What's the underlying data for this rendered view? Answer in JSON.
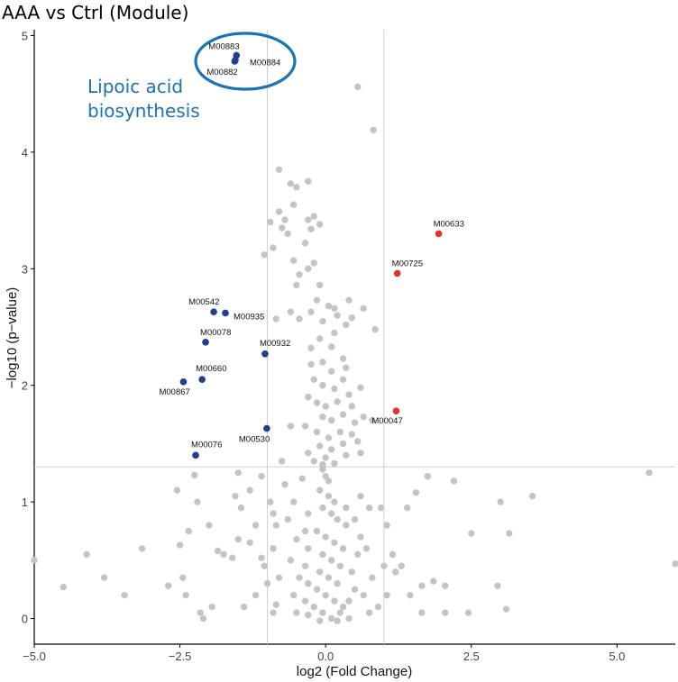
{
  "title": "AAA vs Ctrl (Module)",
  "colors": {
    "nonsignificant": "#c4c4c4",
    "down": "#1f3f8f",
    "up": "#e0342c",
    "annotation": "#1a72b8",
    "threshold": "#cfcfcf"
  },
  "chart_data": {
    "type": "scatter",
    "xlabel": "log2 (Fold Change)",
    "ylabel": "−log10 (p−value)",
    "xlim": [
      -5.0,
      6.0
    ],
    "ylim": [
      -0.22,
      5.05
    ],
    "xticks": [
      -5.0,
      -2.5,
      0.0,
      2.5,
      5.0
    ],
    "xtick_labels": [
      "−5.0",
      "−2.5",
      "0.0",
      "2.5",
      "5.0"
    ],
    "yticks": [
      0,
      1,
      2,
      3,
      4,
      5
    ],
    "ytick_labels": [
      "0",
      "1",
      "2",
      "3",
      "4",
      "5"
    ],
    "grid": false,
    "thresholds": {
      "x": [
        -1.0,
        1.0
      ],
      "y": [
        1.3
      ]
    },
    "annotation": {
      "lines": [
        "Lipoic acid",
        "biosynthesis"
      ],
      "encircles": [
        "M00883",
        "M00884",
        "M00882"
      ]
    },
    "highlighted": [
      {
        "id": "M00883",
        "x": -1.53,
        "y": 4.83,
        "group": "down"
      },
      {
        "id": "M00884",
        "x": -1.55,
        "y": 4.79,
        "group": "down"
      },
      {
        "id": "M00882",
        "x": -1.56,
        "y": 4.78,
        "group": "down"
      },
      {
        "id": "M00542",
        "x": -1.92,
        "y": 2.63,
        "group": "down"
      },
      {
        "id": "M00935",
        "x": -1.72,
        "y": 2.62,
        "group": "down"
      },
      {
        "id": "M00078",
        "x": -2.06,
        "y": 2.37,
        "group": "down"
      },
      {
        "id": "M00932",
        "x": -1.04,
        "y": 2.27,
        "group": "down"
      },
      {
        "id": "M00660",
        "x": -2.12,
        "y": 2.05,
        "group": "down"
      },
      {
        "id": "M00867",
        "x": -2.44,
        "y": 2.03,
        "group": "down"
      },
      {
        "id": "M00530",
        "x": -1.01,
        "y": 1.63,
        "group": "down"
      },
      {
        "id": "M00076",
        "x": -2.23,
        "y": 1.4,
        "group": "down"
      },
      {
        "id": "M00633",
        "x": 1.94,
        "y": 3.3,
        "group": "up"
      },
      {
        "id": "M00725",
        "x": 1.23,
        "y": 2.96,
        "group": "up"
      },
      {
        "id": "M00047",
        "x": 1.21,
        "y": 1.78,
        "group": "up"
      }
    ],
    "background_points": [
      [
        0.55,
        4.56
      ],
      [
        0.82,
        4.19
      ],
      [
        -0.8,
        3.85
      ],
      [
        -0.6,
        3.73
      ],
      [
        -0.3,
        3.75
      ],
      [
        -0.5,
        3.7
      ],
      [
        -0.55,
        3.55
      ],
      [
        -0.8,
        3.49
      ],
      [
        -0.95,
        3.4
      ],
      [
        -0.7,
        3.42
      ],
      [
        -0.65,
        3.3
      ],
      [
        -0.2,
        3.45
      ],
      [
        -0.3,
        3.42
      ],
      [
        -0.25,
        3.34
      ],
      [
        -0.1,
        3.38
      ],
      [
        -0.35,
        3.22
      ],
      [
        -0.75,
        3.35
      ],
      [
        -0.9,
        3.18
      ],
      [
        -1.05,
        3.12
      ],
      [
        -0.55,
        3.07
      ],
      [
        -0.3,
        3.0
      ],
      [
        -0.45,
        2.95
      ],
      [
        -0.1,
        2.86
      ],
      [
        -0.2,
        3.05
      ],
      [
        -0.5,
        2.86
      ],
      [
        0.05,
        2.68
      ],
      [
        0.15,
        2.66
      ],
      [
        -0.15,
        2.73
      ],
      [
        -0.25,
        2.63
      ],
      [
        -0.6,
        2.63
      ],
      [
        -0.85,
        2.57
      ],
      [
        -0.45,
        2.57
      ],
      [
        0.2,
        2.6
      ],
      [
        0.35,
        2.52
      ],
      [
        0.15,
        2.45
      ],
      [
        -0.05,
        2.55
      ],
      [
        0.4,
        2.73
      ],
      [
        0.45,
        2.58
      ],
      [
        0.65,
        2.66
      ],
      [
        0.85,
        2.48
      ],
      [
        -0.25,
        2.32
      ],
      [
        -0.1,
        2.4
      ],
      [
        0.1,
        2.33
      ],
      [
        0.3,
        2.23
      ],
      [
        -0.25,
        2.18
      ],
      [
        -0.05,
        2.2
      ],
      [
        0.1,
        2.12
      ],
      [
        0.35,
        2.15
      ],
      [
        -0.2,
        2.05
      ],
      [
        -0.05,
        2.0
      ],
      [
        0.15,
        1.97
      ],
      [
        0.4,
        1.92
      ],
      [
        0.6,
        1.98
      ],
      [
        0.3,
        2.05
      ],
      [
        -0.3,
        1.9
      ],
      [
        -0.15,
        1.85
      ],
      [
        0.0,
        1.82
      ],
      [
        0.2,
        1.86
      ],
      [
        0.45,
        1.82
      ],
      [
        0.65,
        1.73
      ],
      [
        -0.05,
        1.73
      ],
      [
        0.1,
        1.7
      ],
      [
        0.3,
        1.75
      ],
      [
        0.5,
        1.68
      ],
      [
        0.8,
        1.7
      ],
      [
        -0.35,
        1.65
      ],
      [
        -0.6,
        1.65
      ],
      [
        -0.15,
        1.6
      ],
      [
        0.05,
        1.55
      ],
      [
        0.25,
        1.6
      ],
      [
        0.45,
        1.58
      ],
      [
        -0.1,
        1.48
      ],
      [
        0.1,
        1.45
      ],
      [
        0.3,
        1.5
      ],
      [
        0.55,
        1.52
      ],
      [
        -0.3,
        1.42
      ],
      [
        0.0,
        1.38
      ],
      [
        0.35,
        1.4
      ],
      [
        0.6,
        1.42
      ],
      [
        -0.2,
        1.35
      ],
      [
        0.15,
        1.33
      ],
      [
        -0.05,
        1.32
      ],
      [
        -0.05,
        1.28
      ],
      [
        0.0,
        1.22
      ],
      [
        0.05,
        1.18
      ],
      [
        -0.1,
        1.1
      ],
      [
        0.05,
        1.05
      ],
      [
        0.15,
        1.0
      ],
      [
        -0.05,
        0.95
      ],
      [
        0.1,
        0.9
      ],
      [
        0.2,
        0.85
      ],
      [
        0.35,
        0.8
      ],
      [
        -0.15,
        0.75
      ],
      [
        0.0,
        0.7
      ],
      [
        0.15,
        0.65
      ],
      [
        0.3,
        0.6
      ],
      [
        -0.05,
        0.55
      ],
      [
        0.1,
        0.5
      ],
      [
        0.25,
        0.45
      ],
      [
        -0.1,
        0.4
      ],
      [
        0.05,
        0.35
      ],
      [
        0.2,
        0.3
      ],
      [
        -0.15,
        0.25
      ],
      [
        0.0,
        0.2
      ],
      [
        0.15,
        0.15
      ],
      [
        0.3,
        0.1
      ],
      [
        -0.05,
        0.05
      ],
      [
        0.1,
        0.0
      ],
      [
        0.25,
        0.05
      ],
      [
        -0.2,
        0.1
      ],
      [
        0.4,
        0.15
      ],
      [
        0.5,
        0.25
      ],
      [
        0.45,
        0.4
      ],
      [
        0.55,
        0.55
      ],
      [
        0.6,
        0.7
      ],
      [
        0.5,
        0.85
      ],
      [
        0.35,
        0.95
      ],
      [
        -0.3,
        0.9
      ],
      [
        -0.35,
        0.75
      ],
      [
        -0.3,
        0.6
      ],
      [
        -0.35,
        0.45
      ],
      [
        -0.3,
        0.3
      ],
      [
        -0.35,
        0.15
      ],
      [
        -0.3,
        0.03
      ],
      [
        -0.5,
        0.05
      ],
      [
        -0.55,
        0.2
      ],
      [
        -0.45,
        0.35
      ],
      [
        -0.6,
        0.5
      ],
      [
        -0.5,
        0.68
      ],
      [
        -0.65,
        0.85
      ],
      [
        -0.55,
        1.0
      ],
      [
        -0.7,
        1.15
      ],
      [
        -0.4,
        1.2
      ],
      [
        0.6,
        1.05
      ],
      [
        0.75,
        0.95
      ],
      [
        0.7,
        0.6
      ],
      [
        0.8,
        0.35
      ],
      [
        0.65,
        0.2
      ],
      [
        0.75,
        0.05
      ],
      [
        0.4,
        0.0
      ],
      [
        -0.1,
        -0.02
      ],
      [
        0.2,
        -0.02
      ],
      [
        -0.8,
        0.35
      ],
      [
        -0.9,
        0.6
      ],
      [
        -0.85,
        0.8
      ],
      [
        -1.2,
        0.8
      ],
      [
        -1.05,
        0.45
      ],
      [
        -1.0,
        0.3
      ],
      [
        -1.1,
        0.52
      ],
      [
        -0.85,
        0.12
      ],
      [
        -0.9,
        0.05
      ],
      [
        -1.2,
        0.2
      ],
      [
        -1.4,
        0.1
      ],
      [
        -1.3,
        0.65
      ],
      [
        -1.45,
        0.95
      ],
      [
        -1.5,
        0.68
      ],
      [
        -1.6,
        0.52
      ],
      [
        -1.3,
        1.1
      ],
      [
        -1.5,
        1.25
      ],
      [
        -1.55,
        1.05
      ],
      [
        -0.95,
        1.0
      ],
      [
        -0.9,
        0.9
      ],
      [
        -1.75,
        0.55
      ],
      [
        -1.85,
        0.58
      ],
      [
        -2.0,
        0.8
      ],
      [
        -2.2,
        1.0
      ],
      [
        -2.35,
        0.75
      ],
      [
        -2.25,
        1.23
      ],
      [
        -2.55,
        1.1
      ],
      [
        -2.5,
        0.63
      ],
      [
        -2.45,
        0.35
      ],
      [
        -2.4,
        0.2
      ],
      [
        -1.95,
        0.1
      ],
      [
        -2.15,
        0.05
      ],
      [
        -2.1,
        0.0
      ],
      [
        -2.7,
        0.28
      ],
      [
        -3.15,
        0.6
      ],
      [
        -3.45,
        0.2
      ],
      [
        -3.8,
        0.35
      ],
      [
        -4.1,
        0.55
      ],
      [
        -4.5,
        0.27
      ],
      [
        -5.0,
        0.5
      ],
      [
        -1.1,
        1.22
      ],
      [
        1.0,
        0.45
      ],
      [
        1.15,
        0.55
      ],
      [
        1.3,
        0.45
      ],
      [
        1.45,
        0.2
      ],
      [
        1.4,
        0.95
      ],
      [
        1.55,
        1.08
      ],
      [
        1.75,
        1.22
      ],
      [
        1.65,
        0.28
      ],
      [
        1.85,
        0.32
      ],
      [
        2.05,
        0.28
      ],
      [
        2.05,
        0.05
      ],
      [
        2.2,
        1.18
      ],
      [
        2.45,
        0.05
      ],
      [
        2.5,
        0.73
      ],
      [
        3.0,
        1.0
      ],
      [
        2.95,
        0.28
      ],
      [
        3.1,
        0.08
      ],
      [
        3.15,
        0.73
      ],
      [
        3.55,
        1.05
      ],
      [
        5.55,
        1.25
      ],
      [
        6.0,
        0.47
      ],
      [
        0.95,
        0.95
      ],
      [
        1.05,
        0.8
      ],
      [
        1.2,
        0.4
      ],
      [
        1.65,
        0.05
      ],
      [
        1.05,
        0.2
      ],
      [
        0.9,
        0.1
      ],
      [
        -0.75,
        1.35
      ]
    ]
  }
}
